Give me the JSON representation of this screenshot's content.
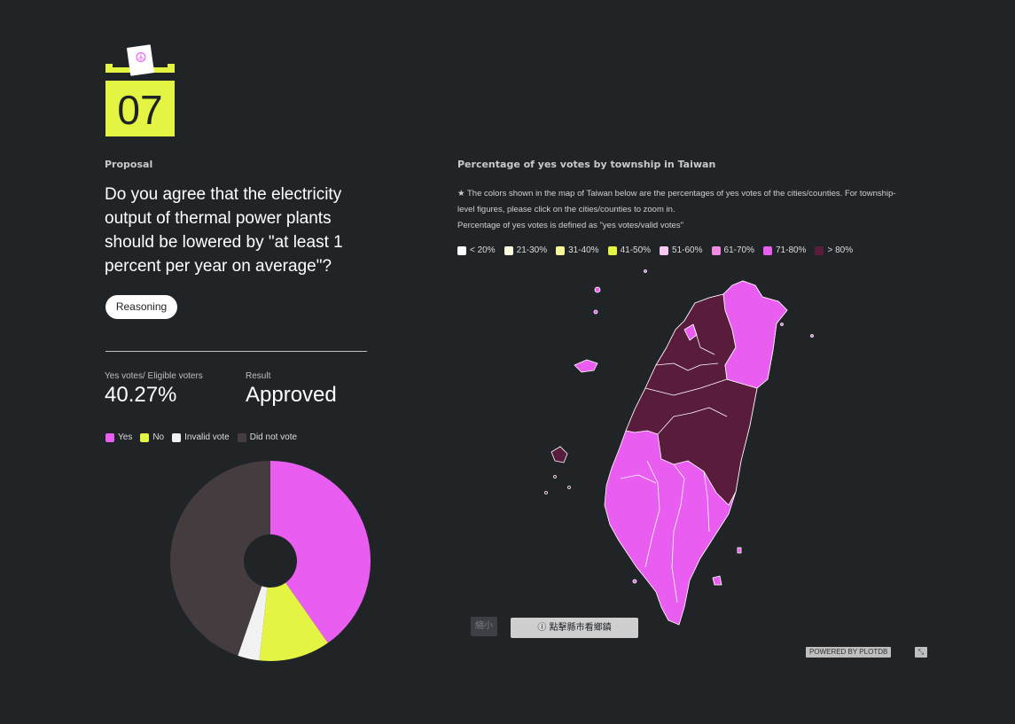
{
  "proposal": {
    "number": "07",
    "ballot_symbol": "☮",
    "section_label": "Proposal",
    "question": "Do you agree that the electricity output of thermal power plants should be lowered by \"at least 1 percent per year on average\"?",
    "reasoning_button": "Reasoning"
  },
  "stats": {
    "yes_label": "Yes votes/ Eligible voters",
    "yes_value": "40.27%",
    "result_label": "Result",
    "result_value": "Approved"
  },
  "vote_legend": [
    {
      "label": "Yes",
      "color": "#e95ef1"
    },
    {
      "label": "No",
      "color": "#e3f443"
    },
    {
      "label": "Invalid vote",
      "color": "#f2f2f2"
    },
    {
      "label": "Did not vote",
      "color": "#453c3f"
    }
  ],
  "chart_data": {
    "type": "pie",
    "donut": true,
    "categories": [
      "Yes",
      "No",
      "Invalid vote",
      "Did not vote"
    ],
    "values": [
      40.27,
      11.5,
      3.5,
      44.73
    ],
    "colors": [
      "#e95ef1",
      "#e3f443",
      "#f2f2f2",
      "#453c3f"
    ]
  },
  "map": {
    "title": "Percentage of yes votes by township in Taiwan",
    "note_line1": "★ The colors shown in the map of Taiwan below are the percentages of yes votes of the cities/counties. For township-level figures, please click on the cities/counties to zoom in.",
    "note_line2": "Percentage of yes votes is defined as \"yes votes/valid votes\"",
    "legend": [
      {
        "label": "< 20%",
        "color": "#ffffff"
      },
      {
        "label": "21-30%",
        "color": "#fcfbe0"
      },
      {
        "label": "31-40%",
        "color": "#f7f79a"
      },
      {
        "label": "41-50%",
        "color": "#e3f443"
      },
      {
        "label": "51-60%",
        "color": "#f7c8f2"
      },
      {
        "label": "61-70%",
        "color": "#f08ae7"
      },
      {
        "label": "71-80%",
        "color": "#e95ef1"
      },
      {
        "label": "> 80%",
        "color": "#5a1c3d"
      }
    ],
    "zoom_out_button": "縮小",
    "info_button": "ⓘ 點擊縣市看鄉鎮",
    "powered_by": "POWERED BY PLOTDB",
    "expand_icon": "⤡"
  }
}
